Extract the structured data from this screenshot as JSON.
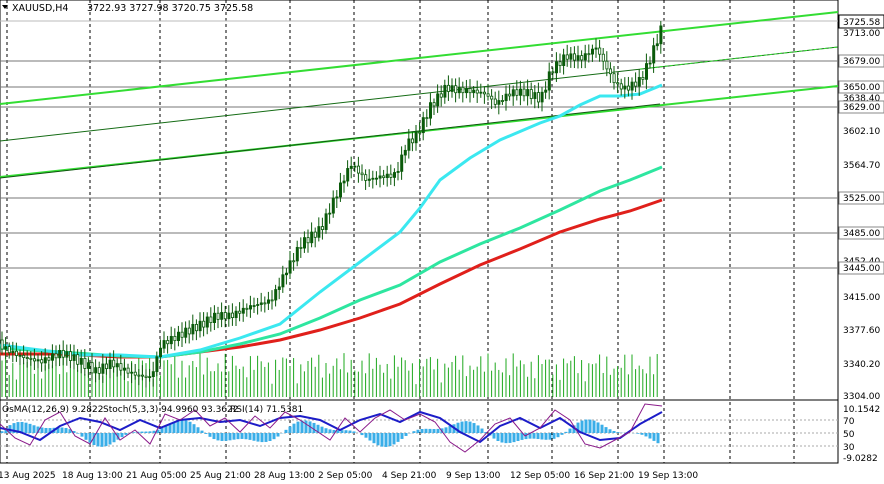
{
  "header": {
    "symbol": "XAUUSD,H4",
    "ohlc": "3722.93 3727.98 3720.75 3725.58",
    "dropdown_icon": "triangle-down-icon"
  },
  "price_axis": {
    "ticks": [
      "3713.00",
      "3602.10",
      "3564.70",
      "3452.40",
      "3415.00",
      "3377.60",
      "3340.20",
      "3304.00"
    ],
    "level_labels": [
      "3679.00",
      "3650.00",
      "3638.40",
      "3629.00",
      "3525.00",
      "3485.00",
      "3445.00"
    ],
    "current_price": "3725.58"
  },
  "indicator_header": {
    "osma": "OsMA(12,26,9) 9.2822",
    "stoch": "Stoch(5,3,3) 94.9960 93.3622",
    "rsi": "RSI(14) 71.5381"
  },
  "indicator_axis": {
    "top": "10.1542",
    "bottom": "-9.0282",
    "levels": [
      "70",
      "50",
      "30"
    ]
  },
  "time_axis": [
    "13 Aug 2025",
    "18 Aug 13:00",
    "21 Aug 05:00",
    "25 Aug 21:00",
    "28 Aug 13:00",
    "2 Sep 05:00",
    "4 Sep 21:00",
    "9 Sep 13:00",
    "12 Sep 05:00",
    "16 Sep 21:00",
    "19 Sep 13:00"
  ],
  "colors": {
    "ema_fast": "#3be8f0",
    "ema_mid": "#2ee6a0",
    "ema_slow": "#e0201b",
    "channel": "#33dd33",
    "candles": "#107a10",
    "volume": "#1ea81e",
    "histogram": "#3aaee8",
    "stoch_main": "#1c1cc8",
    "rsi": "#8a1a8a"
  }
}
